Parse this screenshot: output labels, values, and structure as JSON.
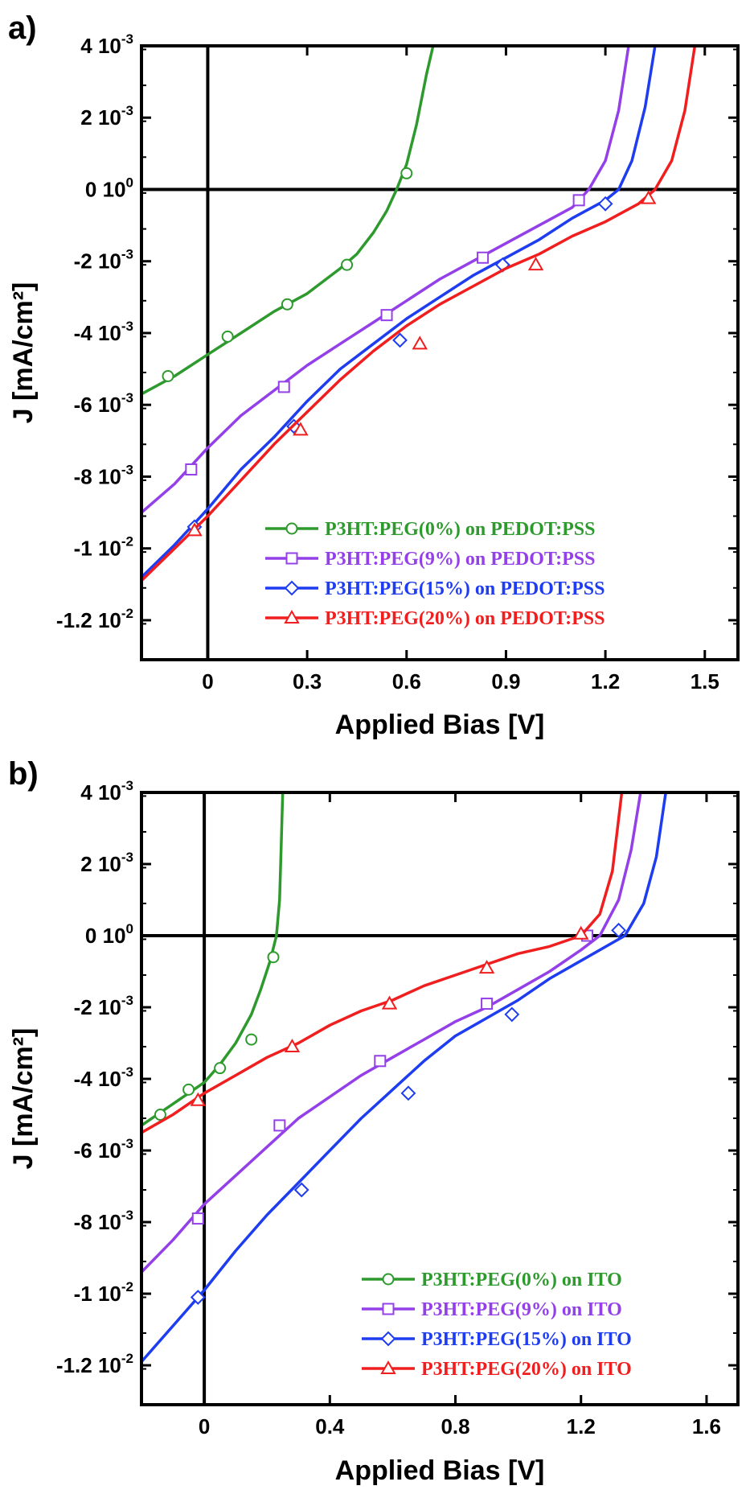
{
  "chart_data": [
    {
      "type": "line",
      "panel_label": "a)",
      "xlabel": "Applied Bias [V]",
      "ylabel": "J [mA/cm²]",
      "xlim": [
        -0.2,
        1.6
      ],
      "ylim": [
        -0.0131,
        0.004
      ],
      "x_ticks": [
        {
          "value": 0,
          "label": "0"
        },
        {
          "value": 0.3,
          "label": "0.3"
        },
        {
          "value": 0.6,
          "label": "0.6"
        },
        {
          "value": 0.9,
          "label": "0.9"
        },
        {
          "value": 1.2,
          "label": "1.2"
        },
        {
          "value": 1.5,
          "label": "1.5"
        }
      ],
      "y_ticks": [
        {
          "value": 0.004,
          "label": "4 10",
          "exp": "-3"
        },
        {
          "value": 0.002,
          "label": "2 10",
          "exp": "-3"
        },
        {
          "value": 0,
          "label": "0 10",
          "exp": "0"
        },
        {
          "value": -0.002,
          "label": "-2 10",
          "exp": "-3"
        },
        {
          "value": -0.004,
          "label": "-4 10",
          "exp": "-3"
        },
        {
          "value": -0.006,
          "label": "-6 10",
          "exp": "-3"
        },
        {
          "value": -0.008,
          "label": "-8 10",
          "exp": "-3"
        },
        {
          "value": -0.01,
          "label": "-1 10",
          "exp": "-2"
        },
        {
          "value": -0.012,
          "label": "-1.2 10",
          "exp": "-2"
        }
      ],
      "legend_position": "bottom-right",
      "series": [
        {
          "name": "P3HT:PEG(0%) on PEDOT:PSS",
          "color": "#2e9a2e",
          "marker": "circle",
          "points": [
            [
              -0.2,
              -0.0057
            ],
            [
              -0.1,
              -0.0052
            ],
            [
              0,
              -0.0046
            ],
            [
              0.1,
              -0.004
            ],
            [
              0.2,
              -0.0034
            ],
            [
              0.3,
              -0.0029
            ],
            [
              0.4,
              -0.0022
            ],
            [
              0.45,
              -0.0018
            ],
            [
              0.5,
              -0.0012
            ],
            [
              0.54,
              -0.0006
            ],
            [
              0.57,
              0
            ],
            [
              0.6,
              0.0007
            ],
            [
              0.63,
              0.0018
            ],
            [
              0.66,
              0.0032
            ],
            [
              0.68,
              0.004
            ]
          ],
          "marker_points": [
            [
              -0.12,
              -0.0052
            ],
            [
              0.06,
              -0.0041
            ],
            [
              0.24,
              -0.0032
            ],
            [
              0.42,
              -0.0021
            ],
            [
              0.6,
              0.00045
            ]
          ]
        },
        {
          "name": "P3HT:PEG(9%) on PEDOT:PSS",
          "color": "#9440e8",
          "marker": "square",
          "points": [
            [
              -0.2,
              -0.009
            ],
            [
              -0.1,
              -0.0082
            ],
            [
              0,
              -0.0072
            ],
            [
              0.1,
              -0.0063
            ],
            [
              0.2,
              -0.0056
            ],
            [
              0.3,
              -0.0049
            ],
            [
              0.4,
              -0.0043
            ],
            [
              0.5,
              -0.0037
            ],
            [
              0.6,
              -0.0031
            ],
            [
              0.7,
              -0.0025
            ],
            [
              0.8,
              -0.002
            ],
            [
              0.9,
              -0.0015
            ],
            [
              1.0,
              -0.001
            ],
            [
              1.1,
              -0.0005
            ],
            [
              1.15,
              0
            ],
            [
              1.2,
              0.0008
            ],
            [
              1.24,
              0.0022
            ],
            [
              1.27,
              0.004
            ]
          ],
          "marker_points": [
            [
              -0.05,
              -0.0078
            ],
            [
              0.23,
              -0.0055
            ],
            [
              0.54,
              -0.0035
            ],
            [
              0.83,
              -0.0019
            ],
            [
              1.12,
              -0.0003
            ]
          ]
        },
        {
          "name": "P3HT:PEG(15%) on PEDOT:PSS",
          "color": "#1e3cf0",
          "marker": "diamond",
          "points": [
            [
              -0.2,
              -0.0108
            ],
            [
              -0.1,
              -0.0099
            ],
            [
              0,
              -0.0089
            ],
            [
              0.1,
              -0.0078
            ],
            [
              0.2,
              -0.0069
            ],
            [
              0.3,
              -0.0059
            ],
            [
              0.4,
              -0.005
            ],
            [
              0.5,
              -0.0043
            ],
            [
              0.6,
              -0.0036
            ],
            [
              0.7,
              -0.003
            ],
            [
              0.8,
              -0.0024
            ],
            [
              0.9,
              -0.0019
            ],
            [
              1.0,
              -0.0014
            ],
            [
              1.1,
              -0.0008
            ],
            [
              1.2,
              -0.0003
            ],
            [
              1.24,
              0
            ],
            [
              1.28,
              0.0008
            ],
            [
              1.32,
              0.0023
            ],
            [
              1.35,
              0.004
            ]
          ],
          "marker_points": [
            [
              -0.04,
              -0.0094
            ],
            [
              0.26,
              -0.0066
            ],
            [
              0.58,
              -0.0042
            ],
            [
              0.89,
              -0.0021
            ],
            [
              1.2,
              -0.0004
            ]
          ]
        },
        {
          "name": "P3HT:PEG(20%) on PEDOT:PSS",
          "color": "#f01e1e",
          "marker": "triangle",
          "points": [
            [
              -0.2,
              -0.0109
            ],
            [
              -0.1,
              -0.01
            ],
            [
              0,
              -0.0091
            ],
            [
              0.1,
              -0.0081
            ],
            [
              0.2,
              -0.0071
            ],
            [
              0.3,
              -0.0062
            ],
            [
              0.4,
              -0.0053
            ],
            [
              0.5,
              -0.0045
            ],
            [
              0.6,
              -0.0038
            ],
            [
              0.7,
              -0.0032
            ],
            [
              0.8,
              -0.0027
            ],
            [
              0.9,
              -0.0022
            ],
            [
              1.0,
              -0.0018
            ],
            [
              1.1,
              -0.0013
            ],
            [
              1.2,
              -0.0009
            ],
            [
              1.3,
              -0.0004
            ],
            [
              1.35,
              0
            ],
            [
              1.4,
              0.0008
            ],
            [
              1.44,
              0.0022
            ],
            [
              1.47,
              0.004
            ]
          ],
          "marker_points": [
            [
              -0.04,
              -0.0095
            ],
            [
              0.28,
              -0.0067
            ],
            [
              0.64,
              -0.0043
            ],
            [
              0.99,
              -0.0021
            ],
            [
              1.33,
              -0.00025
            ]
          ]
        }
      ]
    },
    {
      "type": "line",
      "panel_label": "b)",
      "xlabel": "Applied Bias [V]",
      "ylabel": "J [mA/cm²]",
      "xlim": [
        -0.2,
        1.7
      ],
      "ylim": [
        -0.0131,
        0.004
      ],
      "x_ticks": [
        {
          "value": 0,
          "label": "0"
        },
        {
          "value": 0.4,
          "label": "0.4"
        },
        {
          "value": 0.8,
          "label": "0.8"
        },
        {
          "value": 1.2,
          "label": "1.2"
        },
        {
          "value": 1.6,
          "label": "1.6"
        }
      ],
      "y_ticks": [
        {
          "value": 0.004,
          "label": "4 10",
          "exp": "-3"
        },
        {
          "value": 0.002,
          "label": "2 10",
          "exp": "-3"
        },
        {
          "value": 0,
          "label": "0 10",
          "exp": "0"
        },
        {
          "value": -0.002,
          "label": "-2 10",
          "exp": "-3"
        },
        {
          "value": -0.004,
          "label": "-4 10",
          "exp": "-3"
        },
        {
          "value": -0.006,
          "label": "-6 10",
          "exp": "-3"
        },
        {
          "value": -0.008,
          "label": "-8 10",
          "exp": "-3"
        },
        {
          "value": -0.01,
          "label": "-1 10",
          "exp": "-2"
        },
        {
          "value": -0.012,
          "label": "-1.2 10",
          "exp": "-2"
        }
      ],
      "legend_position": "bottom-right",
      "series": [
        {
          "name": "P3HT:PEG(0%) on ITO",
          "color": "#2e9a2e",
          "marker": "circle",
          "points": [
            [
              -0.2,
              -0.0053
            ],
            [
              -0.1,
              -0.0047
            ],
            [
              0,
              -0.0041
            ],
            [
              0.05,
              -0.0036
            ],
            [
              0.1,
              -0.003
            ],
            [
              0.15,
              -0.0022
            ],
            [
              0.18,
              -0.0015
            ],
            [
              0.21,
              -0.0007
            ],
            [
              0.23,
              0
            ],
            [
              0.24,
              0.001
            ],
            [
              0.245,
              0.0025
            ],
            [
              0.25,
              0.004
            ]
          ],
          "marker_points": [
            [
              -0.14,
              -0.005
            ],
            [
              -0.05,
              -0.0043
            ],
            [
              0.05,
              -0.0037
            ],
            [
              0.15,
              -0.0029
            ],
            [
              0.22,
              -0.0006
            ]
          ]
        },
        {
          "name": "P3HT:PEG(9%) on ITO",
          "color": "#9440e8",
          "marker": "square",
          "points": [
            [
              -0.2,
              -0.0094
            ],
            [
              -0.1,
              -0.0085
            ],
            [
              0,
              -0.0075
            ],
            [
              0.1,
              -0.0067
            ],
            [
              0.2,
              -0.0059
            ],
            [
              0.3,
              -0.0051
            ],
            [
              0.4,
              -0.0045
            ],
            [
              0.5,
              -0.0039
            ],
            [
              0.6,
              -0.0034
            ],
            [
              0.7,
              -0.0029
            ],
            [
              0.8,
              -0.0024
            ],
            [
              0.9,
              -0.002
            ],
            [
              1.0,
              -0.0015
            ],
            [
              1.1,
              -0.001
            ],
            [
              1.2,
              -0.0004
            ],
            [
              1.26,
              0
            ],
            [
              1.32,
              0.001
            ],
            [
              1.36,
              0.0024
            ],
            [
              1.39,
              0.004
            ]
          ],
          "marker_points": [
            [
              -0.02,
              -0.0079
            ],
            [
              0.24,
              -0.0053
            ],
            [
              0.56,
              -0.0035
            ],
            [
              0.9,
              -0.0019
            ],
            [
              1.22,
              0
            ]
          ]
        },
        {
          "name": "P3HT:PEG(15%) on ITO",
          "color": "#1e3cf0",
          "marker": "diamond",
          "points": [
            [
              -0.2,
              -0.0119
            ],
            [
              -0.1,
              -0.0109
            ],
            [
              0,
              -0.0099
            ],
            [
              0.1,
              -0.0088
            ],
            [
              0.2,
              -0.0078
            ],
            [
              0.3,
              -0.0069
            ],
            [
              0.4,
              -0.006
            ],
            [
              0.5,
              -0.0051
            ],
            [
              0.6,
              -0.0043
            ],
            [
              0.7,
              -0.0035
            ],
            [
              0.8,
              -0.0028
            ],
            [
              0.9,
              -0.0023
            ],
            [
              1.0,
              -0.0018
            ],
            [
              1.1,
              -0.0012
            ],
            [
              1.2,
              -0.0007
            ],
            [
              1.3,
              -0.0002
            ],
            [
              1.34,
              0
            ],
            [
              1.4,
              0.0009
            ],
            [
              1.44,
              0.0022
            ],
            [
              1.47,
              0.004
            ]
          ],
          "marker_points": [
            [
              -0.02,
              -0.0101
            ],
            [
              0.31,
              -0.0071
            ],
            [
              0.65,
              -0.0044
            ],
            [
              0.98,
              -0.0022
            ],
            [
              1.32,
              0.00015
            ]
          ]
        },
        {
          "name": "P3HT:PEG(20%) on ITO",
          "color": "#f01e1e",
          "marker": "triangle",
          "points": [
            [
              -0.2,
              -0.0055
            ],
            [
              -0.1,
              -0.005
            ],
            [
              0,
              -0.0044
            ],
            [
              0.1,
              -0.0039
            ],
            [
              0.2,
              -0.0034
            ],
            [
              0.3,
              -0.003
            ],
            [
              0.4,
              -0.0025
            ],
            [
              0.5,
              -0.0021
            ],
            [
              0.6,
              -0.0018
            ],
            [
              0.7,
              -0.0014
            ],
            [
              0.8,
              -0.0011
            ],
            [
              0.9,
              -0.0008
            ],
            [
              1.0,
              -0.0005
            ],
            [
              1.1,
              -0.0003
            ],
            [
              1.2,
              0
            ],
            [
              1.26,
              0.0006
            ],
            [
              1.3,
              0.0018
            ],
            [
              1.33,
              0.004
            ]
          ],
          "marker_points": [
            [
              -0.02,
              -0.0046
            ],
            [
              0.28,
              -0.0031
            ],
            [
              0.59,
              -0.0019
            ],
            [
              0.9,
              -0.0009
            ],
            [
              1.2,
              5e-05
            ]
          ]
        }
      ]
    }
  ]
}
